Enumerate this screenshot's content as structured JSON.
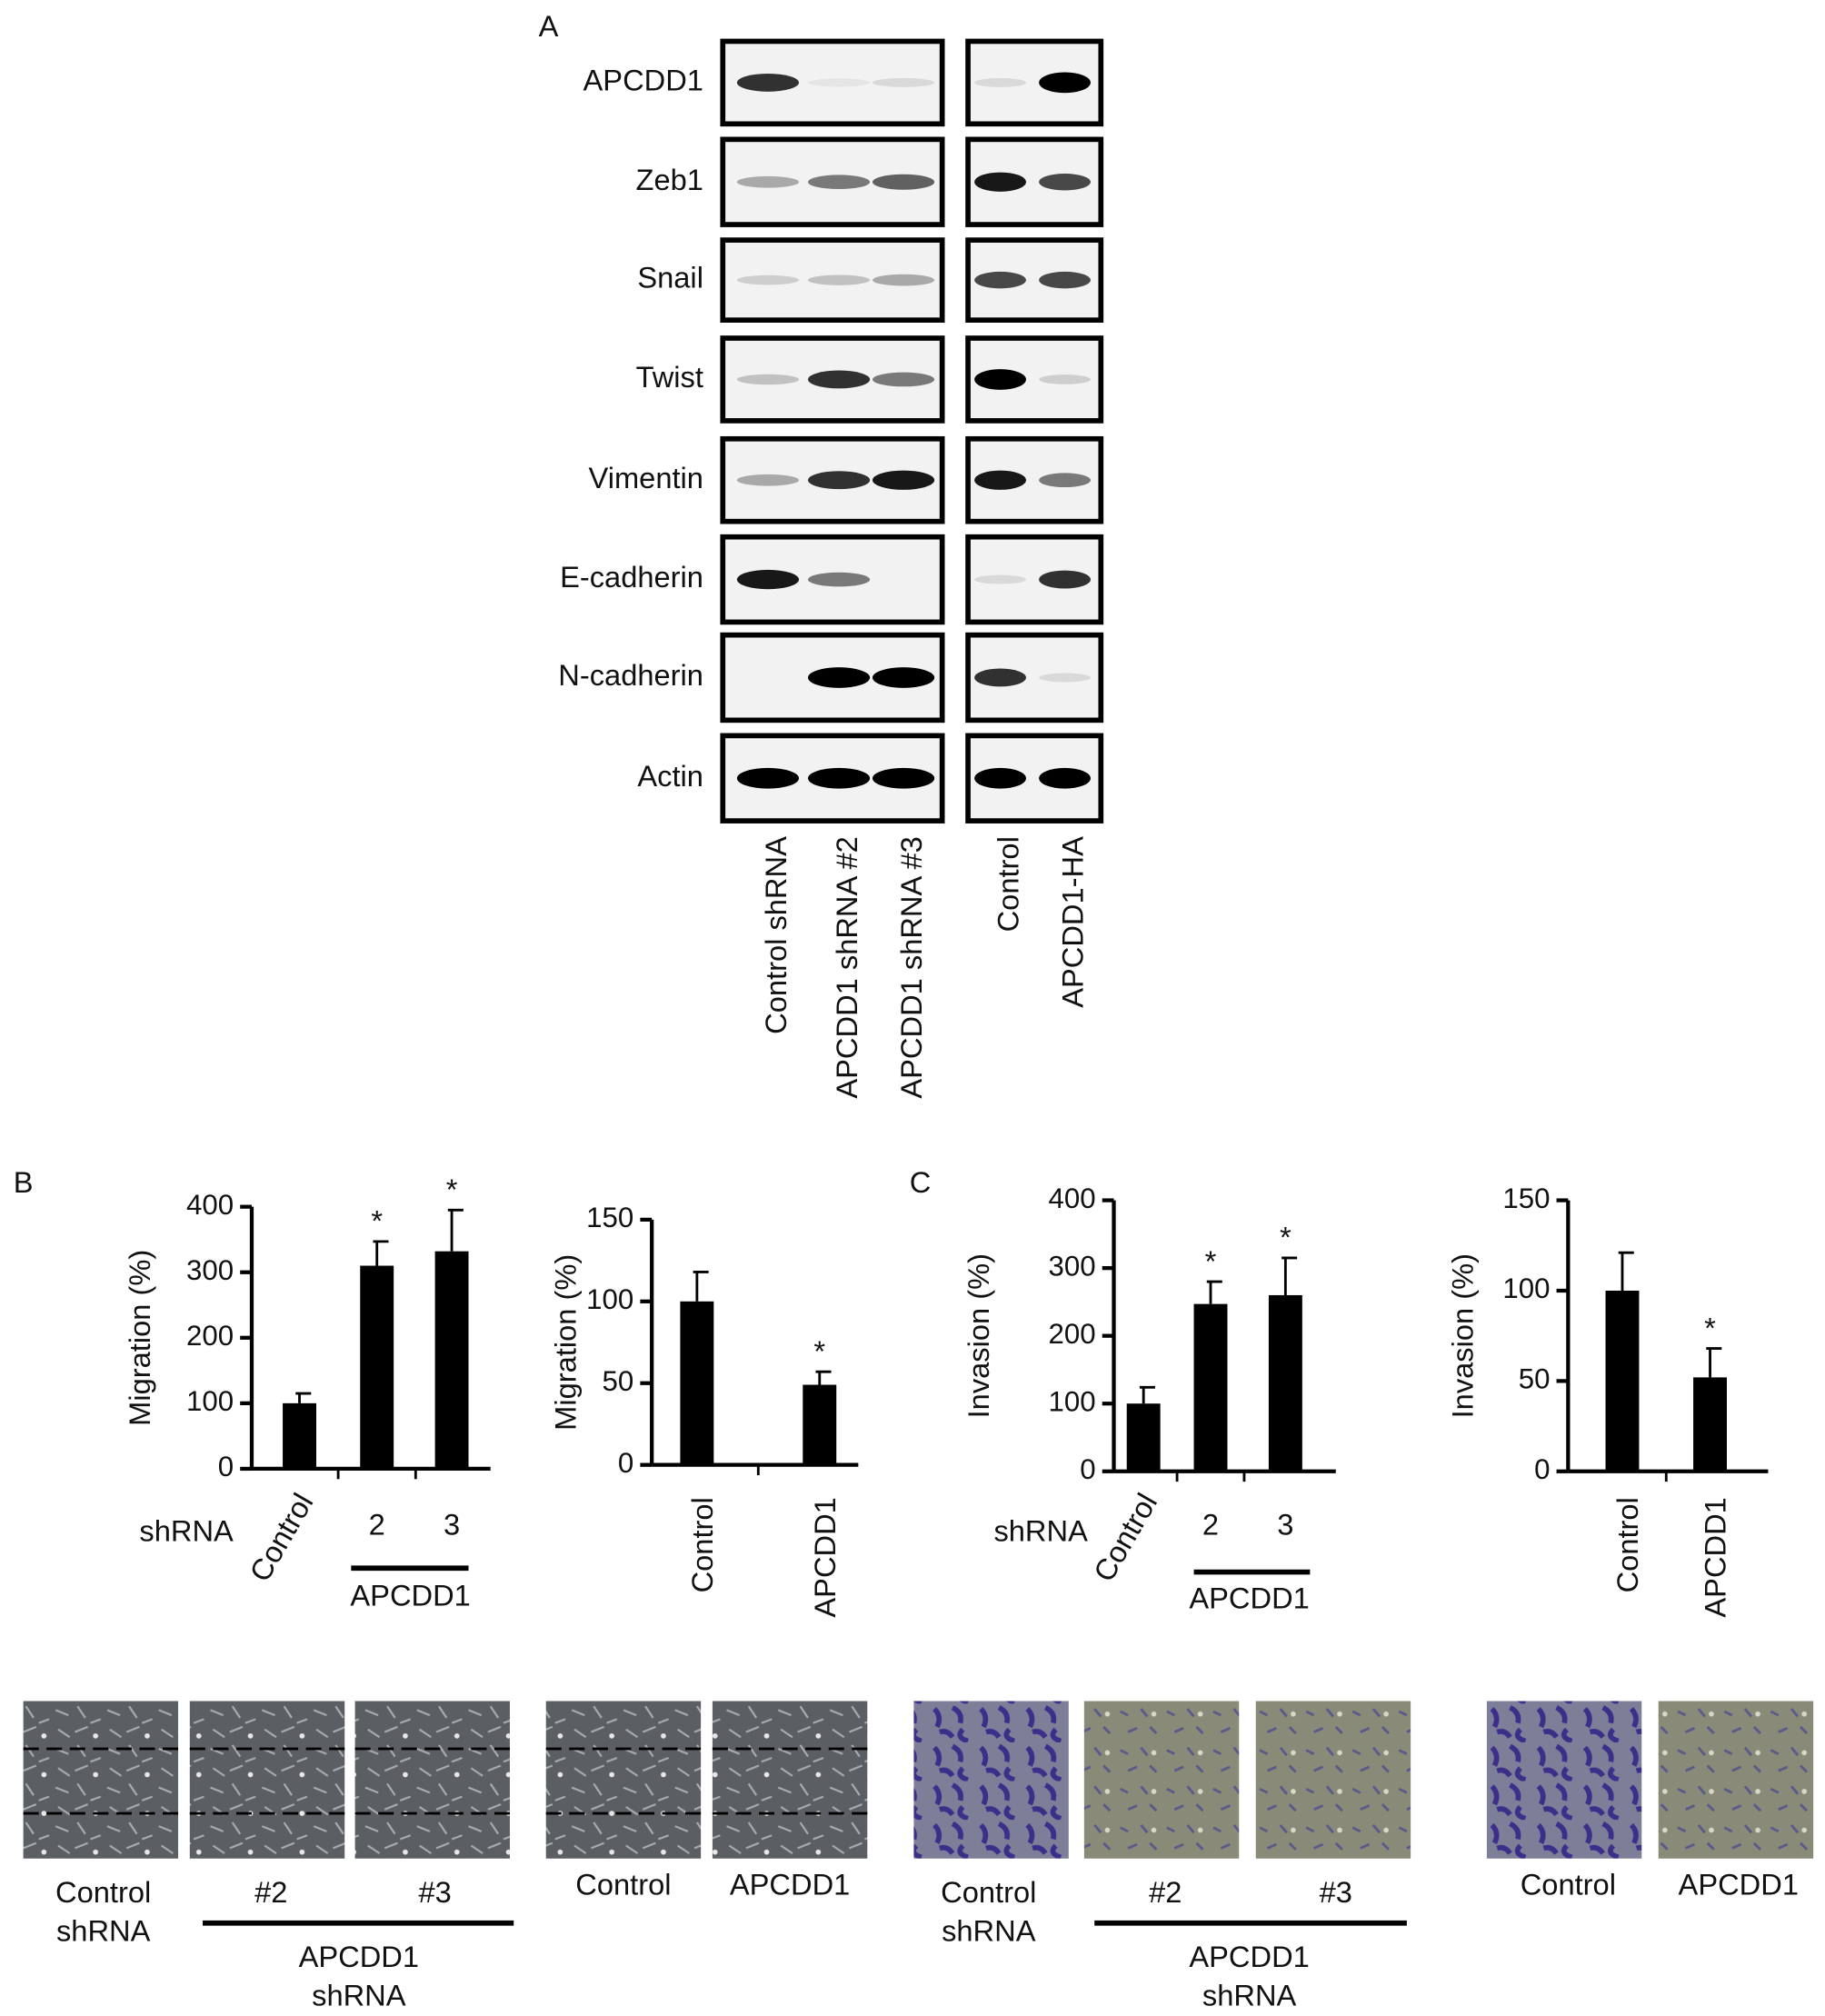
{
  "panel_labels": {
    "a": "A",
    "b": "B",
    "c": "C"
  },
  "blot": {
    "proteins": [
      "APCDD1",
      "Zeb1",
      "Snail",
      "Twist",
      "Vimentin",
      "E-cadherin",
      "N-cadherin",
      "Actin"
    ],
    "lanes_left": [
      "Control shRNA",
      "APCDD1 shRNA #2",
      "APCDD1 shRNA #3"
    ],
    "lanes_right": [
      "Control",
      "APCDD1-HA"
    ]
  },
  "chart_data": [
    {
      "type": "bar",
      "y_label": "Migration (%)",
      "x_prefix": "shRNA",
      "group_label": "APCDD1",
      "categories": [
        "Control",
        "2",
        "3"
      ],
      "values": [
        100,
        310,
        332
      ],
      "errors": [
        15,
        37,
        63
      ],
      "significance": [
        null,
        "*",
        "*"
      ],
      "color": "#000000",
      "ylim": [
        0,
        400
      ],
      "yticks": [
        0,
        100,
        200,
        300,
        400
      ]
    },
    {
      "type": "bar",
      "y_label": "Migration (%)",
      "categories": [
        "Control",
        "APCDD1"
      ],
      "values": [
        100,
        49
      ],
      "errors": [
        18,
        8
      ],
      "significance": [
        null,
        "*"
      ],
      "color": "#000000",
      "ylim": [
        0,
        150
      ],
      "yticks": [
        0,
        50,
        100,
        150
      ]
    },
    {
      "type": "bar",
      "y_label": "Invasion (%)",
      "x_prefix": "shRNA",
      "group_label": "APCDD1",
      "categories": [
        "Control",
        "2",
        "3"
      ],
      "values": [
        100,
        247,
        260
      ],
      "errors": [
        24,
        33,
        55
      ],
      "significance": [
        null,
        "*",
        "*"
      ],
      "color": "#000000",
      "ylim": [
        0,
        400
      ],
      "yticks": [
        0,
        100,
        200,
        300,
        400
      ]
    },
    {
      "type": "bar",
      "y_label": "Invasion (%)",
      "categories": [
        "Control",
        "APCDD1"
      ],
      "values": [
        100,
        52
      ],
      "errors": [
        21,
        16
      ],
      "significance": [
        null,
        "*"
      ],
      "color": "#000000",
      "ylim": [
        0,
        150
      ],
      "yticks": [
        0,
        50,
        100,
        150
      ]
    }
  ],
  "images": {
    "b_shrna": {
      "control": [
        "Control",
        "shRNA"
      ],
      "lanes": [
        "#2",
        "#3"
      ],
      "group": [
        "APCDD1",
        "shRNA"
      ]
    },
    "b_overexpression": {
      "lanes": [
        "Control",
        "APCDD1"
      ]
    },
    "c_shrna": {
      "control": [
        "Control",
        "shRNA"
      ],
      "lanes": [
        "#2",
        "#3"
      ],
      "group": [
        "APCDD1",
        "shRNA"
      ]
    },
    "c_overexpression": {
      "lanes": [
        "Control",
        "APCDD1"
      ]
    }
  }
}
